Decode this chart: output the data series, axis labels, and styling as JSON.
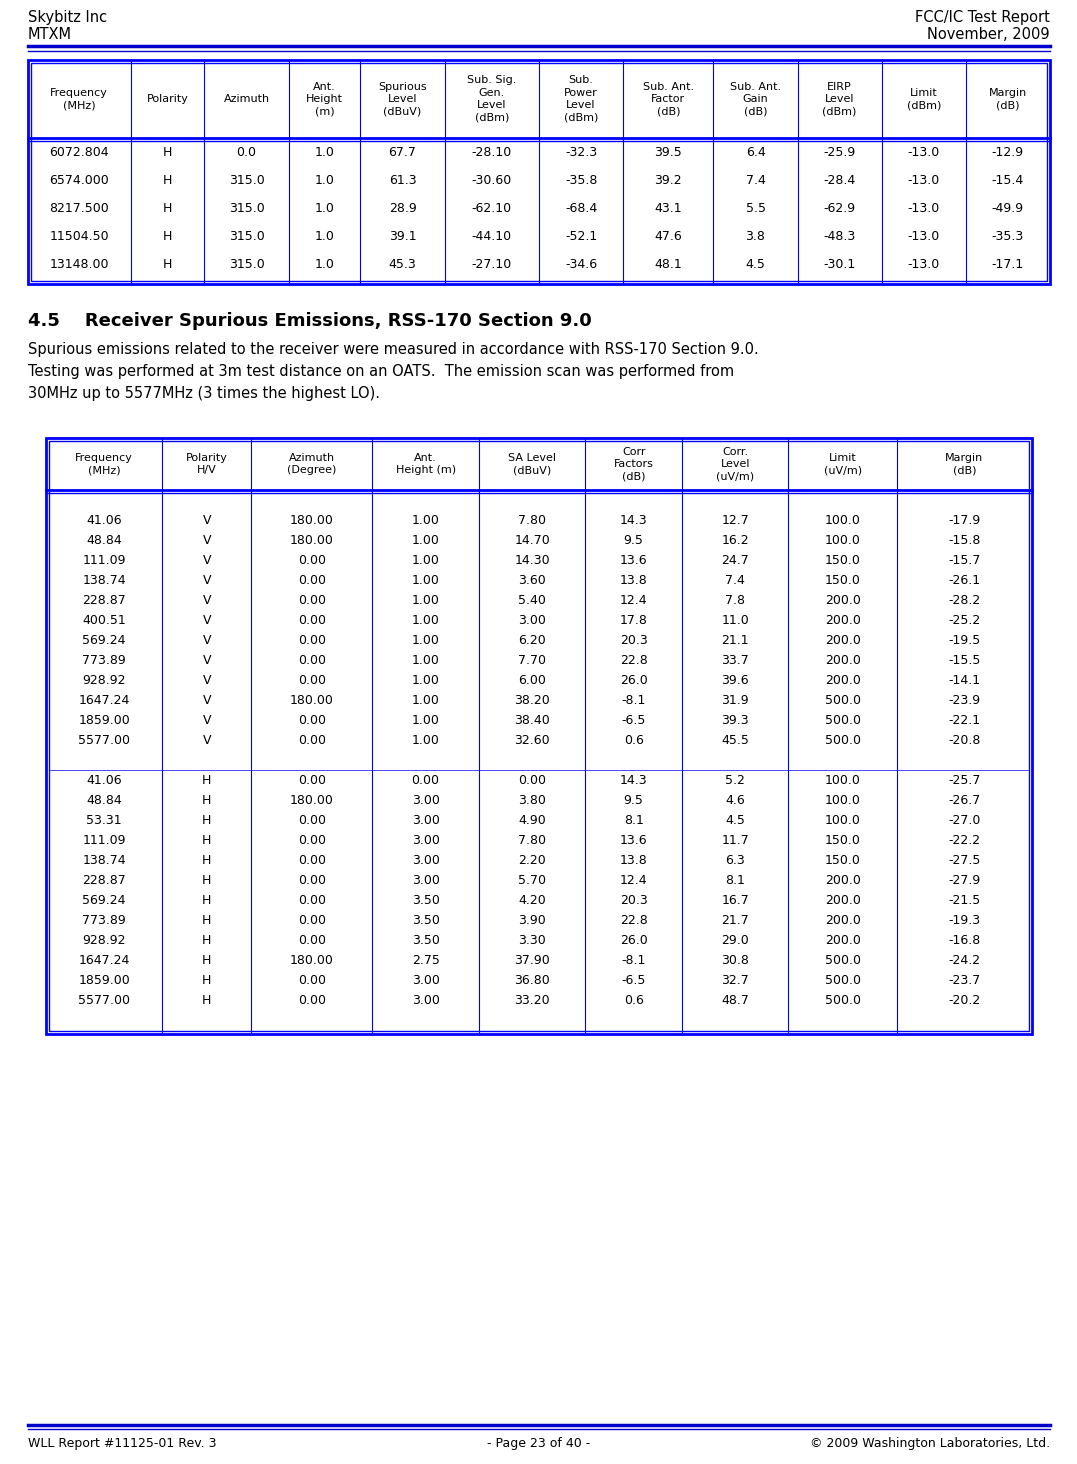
{
  "header_left1": "Skybitz Inc",
  "header_left2": "MTXM",
  "header_right1": "FCC/IC Test Report",
  "header_right2": "November, 2009",
  "footer_left": "WLL Report #11125-01 Rev. 3",
  "footer_center": "- Page 23 of 40 -",
  "footer_right": "© 2009 Washington Laboratories, Ltd.",
  "table1_headers": [
    "Frequency\n(MHz)",
    "Polarity",
    "Azimuth",
    "Ant.\nHeight\n(m)",
    "Spurious\nLevel\n(dBuV)",
    "Sub. Sig.\nGen.\nLevel\n(dBm)",
    "Sub.\nPower\nLevel\n(dBm)",
    "Sub. Ant.\nFactor\n(dB)",
    "Sub. Ant.\nGain\n(dB)",
    "EIRP\nLevel\n(dBm)",
    "Limit\n(dBm)",
    "Margin\n(dB)"
  ],
  "table1_data": [
    [
      "6072.804",
      "H",
      "0.0",
      "1.0",
      "67.7",
      "-28.10",
      "-32.3",
      "39.5",
      "6.4",
      "-25.9",
      "-13.0",
      "-12.9"
    ],
    [
      "6574.000",
      "H",
      "315.0",
      "1.0",
      "61.3",
      "-30.60",
      "-35.8",
      "39.2",
      "7.4",
      "-28.4",
      "-13.0",
      "-15.4"
    ],
    [
      "8217.500",
      "H",
      "315.0",
      "1.0",
      "28.9",
      "-62.10",
      "-68.4",
      "43.1",
      "5.5",
      "-62.9",
      "-13.0",
      "-49.9"
    ],
    [
      "11504.50",
      "H",
      "315.0",
      "1.0",
      "39.1",
      "-44.10",
      "-52.1",
      "47.6",
      "3.8",
      "-48.3",
      "-13.0",
      "-35.3"
    ],
    [
      "13148.00",
      "H",
      "315.0",
      "1.0",
      "45.3",
      "-27.10",
      "-34.6",
      "48.1",
      "4.5",
      "-30.1",
      "-13.0",
      "-17.1"
    ]
  ],
  "section_title": "4.5    Receiver Spurious Emissions, RSS-170 Section 9.0",
  "section_text_line1": "Spurious emissions related to the receiver were measured in accordance with RSS-170 Section 9.0.",
  "section_text_line2": "Testing was performed at 3m test distance on an OATS.  The emission scan was performed from",
  "section_text_line3": "30MHz up to 5577MHz (3 times the highest LO).",
  "table2_headers": [
    "Frequency\n(MHz)",
    "Polarity\nH/V",
    "Azimuth\n(Degree)",
    "Ant.\nHeight (m)",
    "SA Level\n(dBuV)",
    "Corr\nFactors\n(dB)",
    "Corr.\nLevel\n(uV/m)",
    "Limit\n(uV/m)",
    "Margin\n(dB)"
  ],
  "table2_v_data": [
    [
      "41.06",
      "V",
      "180.00",
      "1.00",
      "7.80",
      "14.3",
      "12.7",
      "100.0",
      "-17.9"
    ],
    [
      "48.84",
      "V",
      "180.00",
      "1.00",
      "14.70",
      "9.5",
      "16.2",
      "100.0",
      "-15.8"
    ],
    [
      "111.09",
      "V",
      "0.00",
      "1.00",
      "14.30",
      "13.6",
      "24.7",
      "150.0",
      "-15.7"
    ],
    [
      "138.74",
      "V",
      "0.00",
      "1.00",
      "3.60",
      "13.8",
      "7.4",
      "150.0",
      "-26.1"
    ],
    [
      "228.87",
      "V",
      "0.00",
      "1.00",
      "5.40",
      "12.4",
      "7.8",
      "200.0",
      "-28.2"
    ],
    [
      "400.51",
      "V",
      "0.00",
      "1.00",
      "3.00",
      "17.8",
      "11.0",
      "200.0",
      "-25.2"
    ],
    [
      "569.24",
      "V",
      "0.00",
      "1.00",
      "6.20",
      "20.3",
      "21.1",
      "200.0",
      "-19.5"
    ],
    [
      "773.89",
      "V",
      "0.00",
      "1.00",
      "7.70",
      "22.8",
      "33.7",
      "200.0",
      "-15.5"
    ],
    [
      "928.92",
      "V",
      "0.00",
      "1.00",
      "6.00",
      "26.0",
      "39.6",
      "200.0",
      "-14.1"
    ],
    [
      "1647.24",
      "V",
      "180.00",
      "1.00",
      "38.20",
      "-8.1",
      "31.9",
      "500.0",
      "-23.9"
    ],
    [
      "1859.00",
      "V",
      "0.00",
      "1.00",
      "38.40",
      "-6.5",
      "39.3",
      "500.0",
      "-22.1"
    ],
    [
      "5577.00",
      "V",
      "0.00",
      "1.00",
      "32.60",
      "0.6",
      "45.5",
      "500.0",
      "-20.8"
    ]
  ],
  "table2_h_data": [
    [
      "41.06",
      "H",
      "0.00",
      "0.00",
      "0.00",
      "14.3",
      "5.2",
      "100.0",
      "-25.7"
    ],
    [
      "48.84",
      "H",
      "180.00",
      "3.00",
      "3.80",
      "9.5",
      "4.6",
      "100.0",
      "-26.7"
    ],
    [
      "53.31",
      "H",
      "0.00",
      "3.00",
      "4.90",
      "8.1",
      "4.5",
      "100.0",
      "-27.0"
    ],
    [
      "111.09",
      "H",
      "0.00",
      "3.00",
      "7.80",
      "13.6",
      "11.7",
      "150.0",
      "-22.2"
    ],
    [
      "138.74",
      "H",
      "0.00",
      "3.00",
      "2.20",
      "13.8",
      "6.3",
      "150.0",
      "-27.5"
    ],
    [
      "228.87",
      "H",
      "0.00",
      "3.00",
      "5.70",
      "12.4",
      "8.1",
      "200.0",
      "-27.9"
    ],
    [
      "569.24",
      "H",
      "0.00",
      "3.50",
      "4.20",
      "20.3",
      "16.7",
      "200.0",
      "-21.5"
    ],
    [
      "773.89",
      "H",
      "0.00",
      "3.50",
      "3.90",
      "22.8",
      "21.7",
      "200.0",
      "-19.3"
    ],
    [
      "928.92",
      "H",
      "0.00",
      "3.50",
      "3.30",
      "26.0",
      "29.0",
      "200.0",
      "-16.8"
    ],
    [
      "1647.24",
      "H",
      "180.00",
      "2.75",
      "37.90",
      "-8.1",
      "30.8",
      "500.0",
      "-24.2"
    ],
    [
      "1859.00",
      "H",
      "0.00",
      "3.00",
      "36.80",
      "-6.5",
      "32.7",
      "500.0",
      "-23.7"
    ],
    [
      "5577.00",
      "H",
      "0.00",
      "3.00",
      "33.20",
      "0.6",
      "48.7",
      "500.0",
      "-20.2"
    ]
  ],
  "blue_color": "#0000CC",
  "border_color": "#0000FF",
  "bg_color": "#FFFFFF",
  "text_color": "#000000"
}
